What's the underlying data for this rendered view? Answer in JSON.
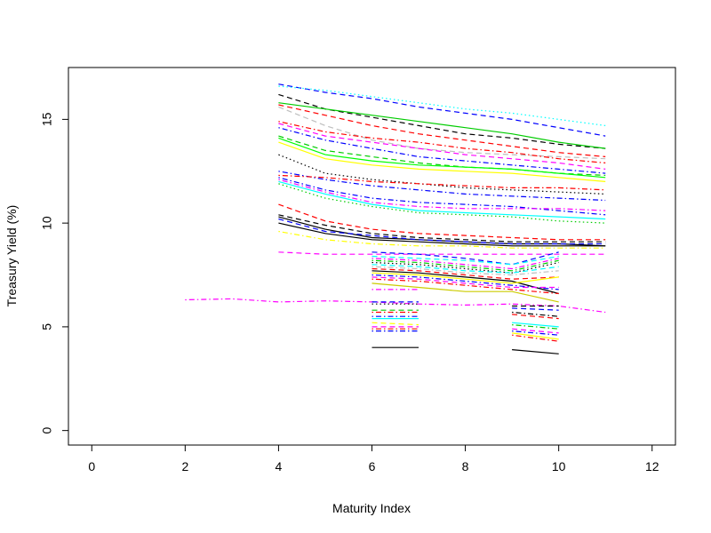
{
  "chart_data": {
    "type": "line",
    "title": "",
    "xlabel": "Maturity Index",
    "ylabel": "Treasury Yield (%)",
    "xlim": [
      -0.5,
      12.5
    ],
    "ylim": [
      -0.7,
      17.5
    ],
    "xticks": [
      0,
      2,
      4,
      6,
      8,
      10,
      12
    ],
    "yticks": [
      0,
      5,
      10,
      15
    ],
    "grid": false,
    "legend": "none",
    "series": [
      {
        "color": "#0000ff",
        "dash": "dashed",
        "x": [
          4,
          5,
          6,
          7,
          8,
          9,
          10,
          11
        ],
        "y": [
          16.7,
          16.3,
          16.0,
          15.6,
          15.3,
          15.0,
          14.6,
          14.2
        ]
      },
      {
        "color": "#00ffff",
        "dash": "dotted",
        "x": [
          4,
          5,
          6,
          7,
          8,
          9,
          10,
          11
        ],
        "y": [
          16.6,
          16.4,
          16.1,
          15.8,
          15.5,
          15.3,
          15.0,
          14.7
        ]
      },
      {
        "color": "#000000",
        "dash": "dashed",
        "x": [
          4,
          5,
          6,
          7,
          8,
          9,
          10,
          11
        ],
        "y": [
          16.2,
          15.5,
          15.1,
          14.7,
          14.3,
          14.1,
          13.8,
          13.6
        ]
      },
      {
        "color": "#00cc00",
        "dash": "solid",
        "x": [
          4,
          5,
          6,
          7,
          8,
          9,
          10,
          11
        ],
        "y": [
          15.8,
          15.5,
          15.2,
          14.9,
          14.6,
          14.3,
          13.9,
          13.6
        ]
      },
      {
        "color": "#ff0000",
        "dash": "dashed",
        "x": [
          4,
          5,
          6,
          7,
          8,
          9,
          10,
          11
        ],
        "y": [
          15.7,
          15.2,
          14.7,
          14.3,
          14.0,
          13.7,
          13.4,
          13.2
        ]
      },
      {
        "color": "#bebebe",
        "dash": "dashed",
        "x": [
          4,
          5,
          6,
          7,
          8,
          9,
          10,
          11
        ],
        "y": [
          15.6,
          14.7,
          14.0,
          13.6,
          13.4,
          13.3,
          13.2,
          13.1
        ]
      },
      {
        "color": "#ff0000",
        "dash": "dashdot",
        "x": [
          4,
          5,
          6,
          7,
          8,
          9,
          10,
          11
        ],
        "y": [
          14.9,
          14.4,
          14.1,
          13.9,
          13.6,
          13.4,
          13.1,
          12.9
        ]
      },
      {
        "color": "#ff00ff",
        "dash": "dashed",
        "x": [
          4,
          5,
          6,
          7,
          8,
          9,
          10,
          11
        ],
        "y": [
          14.8,
          14.2,
          13.9,
          13.6,
          13.3,
          13.1,
          12.9,
          12.6
        ]
      },
      {
        "color": "#0000ff",
        "dash": "dashdot",
        "x": [
          4,
          5,
          6,
          7,
          8,
          9,
          10,
          11
        ],
        "y": [
          14.6,
          14.0,
          13.6,
          13.2,
          13.0,
          12.8,
          12.6,
          12.4
        ]
      },
      {
        "color": "#00cc00",
        "dash": "dashed",
        "x": [
          4,
          5,
          6,
          7,
          8,
          9,
          10,
          11
        ],
        "y": [
          14.2,
          13.5,
          13.2,
          12.9,
          12.7,
          12.6,
          12.4,
          12.3
        ]
      },
      {
        "color": "#00ff00",
        "dash": "solid",
        "x": [
          4,
          5,
          6,
          7,
          8,
          9,
          10,
          11
        ],
        "y": [
          14.1,
          13.3,
          13.0,
          12.8,
          12.7,
          12.6,
          12.4,
          12.2
        ]
      },
      {
        "color": "#ffff00",
        "dash": "solid",
        "x": [
          4,
          5,
          6,
          7,
          8,
          9,
          10,
          11
        ],
        "y": [
          13.9,
          13.1,
          12.8,
          12.6,
          12.5,
          12.4,
          12.2,
          12.0
        ]
      },
      {
        "color": "#000000",
        "dash": "dotted",
        "x": [
          4,
          5,
          6,
          7,
          8,
          9,
          10,
          11
        ],
        "y": [
          13.3,
          12.4,
          12.1,
          11.9,
          11.7,
          11.6,
          11.5,
          11.4
        ]
      },
      {
        "color": "#0000ff",
        "dash": "dashdot",
        "x": [
          4,
          5,
          6,
          7,
          8,
          9,
          10,
          11
        ],
        "y": [
          12.5,
          12.1,
          11.8,
          11.6,
          11.4,
          11.3,
          11.2,
          11.1
        ]
      },
      {
        "color": "#ff0000",
        "dash": "dashdot",
        "x": [
          4,
          5,
          6,
          7,
          8,
          9,
          10,
          11
        ],
        "y": [
          12.3,
          12.2,
          12.0,
          11.9,
          11.8,
          11.7,
          11.7,
          11.6
        ]
      },
      {
        "color": "#00ffff",
        "dash": "solid",
        "x": [
          4,
          5,
          6,
          7,
          8,
          9,
          10,
          11
        ],
        "y": [
          12.0,
          11.4,
          10.9,
          10.6,
          10.5,
          10.4,
          10.3,
          10.2
        ]
      },
      {
        "color": "#0000ff",
        "dash": "dashdot",
        "x": [
          4,
          5,
          6,
          7,
          8,
          9,
          10,
          11
        ],
        "y": [
          12.2,
          11.6,
          11.2,
          11.0,
          10.9,
          10.8,
          10.6,
          10.4
        ]
      },
      {
        "color": "#ff00ff",
        "dash": "dashdot",
        "x": [
          4,
          5,
          6,
          7,
          8,
          9,
          10,
          11
        ],
        "y": [
          12.1,
          11.5,
          11.0,
          10.8,
          10.7,
          10.7,
          10.7,
          10.6
        ]
      },
      {
        "color": "#00cc00",
        "dash": "dotted",
        "x": [
          4,
          5,
          6,
          7,
          8,
          9,
          10,
          11
        ],
        "y": [
          11.9,
          11.2,
          10.8,
          10.5,
          10.4,
          10.3,
          10.1,
          10.0
        ]
      },
      {
        "color": "#ff0000",
        "dash": "dashed",
        "x": [
          4,
          5,
          6,
          7,
          8,
          9,
          10,
          11
        ],
        "y": [
          10.9,
          10.1,
          9.7,
          9.5,
          9.4,
          9.3,
          9.2,
          9.2
        ]
      },
      {
        "color": "#000000",
        "dash": "dashed",
        "x": [
          4,
          5,
          6,
          7,
          8,
          9,
          10,
          11
        ],
        "y": [
          10.4,
          9.9,
          9.5,
          9.3,
          9.2,
          9.1,
          9.1,
          9.1
        ]
      },
      {
        "color": "#000000",
        "dash": "solid",
        "x": [
          4,
          5,
          6,
          7,
          8,
          9,
          10,
          11
        ],
        "y": [
          10.3,
          9.7,
          9.3,
          9.2,
          9.1,
          9.0,
          9.0,
          8.9
        ]
      },
      {
        "color": "#0000ff",
        "dash": "dashed",
        "x": [
          4,
          5,
          6,
          7,
          8,
          9,
          10,
          11
        ],
        "y": [
          10.2,
          9.6,
          9.4,
          9.2,
          9.1,
          9.0,
          9.0,
          9.0
        ]
      },
      {
        "color": "#000000",
        "dash": "solid",
        "x": [
          4,
          5,
          6,
          7,
          8,
          9,
          10,
          11
        ],
        "y": [
          10.0,
          9.5,
          9.2,
          9.1,
          9.0,
          8.9,
          8.9,
          8.9
        ]
      },
      {
        "color": "#ffff00",
        "dash": "dashdot",
        "x": [
          4,
          5,
          6,
          7,
          8,
          9,
          10,
          11
        ],
        "y": [
          9.6,
          9.2,
          9.0,
          8.9,
          8.9,
          8.8,
          8.8,
          8.8
        ]
      },
      {
        "color": "#ff00ff",
        "dash": "dashed",
        "x": [
          4,
          5,
          6,
          7,
          8,
          9,
          10,
          11
        ],
        "y": [
          8.6,
          8.5,
          8.5,
          8.5,
          8.5,
          8.5,
          8.5,
          8.5
        ]
      },
      {
        "color": "#ff00ff",
        "dash": "dashdot",
        "x": [
          2,
          3,
          4,
          5,
          6,
          7,
          8,
          9,
          10,
          11
        ],
        "y": [
          6.3,
          6.35,
          6.2,
          6.25,
          6.2,
          6.1,
          6.05,
          6.1,
          6.0,
          5.7
        ]
      },
      {
        "color": "#0000ff",
        "dash": "dashed",
        "x": [
          6,
          7,
          8,
          9,
          10
        ],
        "y": [
          8.6,
          8.5,
          8.3,
          8.0,
          8.6
        ]
      },
      {
        "color": "#00ffff",
        "dash": "dashed",
        "x": [
          6,
          7,
          8,
          9,
          10
        ],
        "y": [
          8.4,
          8.3,
          8.2,
          8.0,
          8.4
        ]
      },
      {
        "color": "#ff00ff",
        "dash": "dashdot",
        "x": [
          6,
          7,
          8,
          9,
          10
        ],
        "y": [
          8.3,
          8.2,
          8.0,
          7.8,
          8.3
        ]
      },
      {
        "color": "#00cc00",
        "dash": "dashdot",
        "x": [
          6,
          7,
          8,
          9,
          10
        ],
        "y": [
          8.2,
          8.1,
          7.9,
          7.7,
          8.2
        ]
      },
      {
        "color": "#000000",
        "dash": "dotted",
        "x": [
          6,
          7,
          8,
          9,
          10
        ],
        "y": [
          8.1,
          8.0,
          7.8,
          7.6,
          8.1
        ]
      },
      {
        "color": "#00ffff",
        "dash": "dashed",
        "x": [
          6,
          7,
          8,
          9,
          10
        ],
        "y": [
          8.0,
          7.9,
          7.7,
          7.6,
          7.9
        ]
      },
      {
        "color": "#bebebe",
        "dash": "dashdot",
        "x": [
          6,
          7,
          8,
          9,
          10
        ],
        "y": [
          7.9,
          7.8,
          7.6,
          7.5,
          7.7
        ]
      },
      {
        "color": "#ff0000",
        "dash": "dashed",
        "x": [
          6,
          7,
          8,
          9,
          10
        ],
        "y": [
          7.8,
          7.7,
          7.5,
          7.3,
          7.4
        ]
      },
      {
        "color": "#000000",
        "dash": "solid",
        "x": [
          6,
          7,
          8,
          9,
          10
        ],
        "y": [
          7.7,
          7.6,
          7.4,
          7.2,
          6.6
        ]
      },
      {
        "color": "#ffff00",
        "dash": "solid",
        "x": [
          6,
          7,
          8,
          9,
          10
        ],
        "y": [
          7.6,
          7.5,
          7.3,
          7.1,
          7.4
        ]
      },
      {
        "color": "#0000ff",
        "dash": "dashdot",
        "x": [
          6,
          7,
          8,
          9,
          10
        ],
        "y": [
          7.5,
          7.4,
          7.2,
          7.0,
          6.8
        ]
      },
      {
        "color": "#ff00ff",
        "dash": "dashed",
        "x": [
          6,
          7,
          8,
          9,
          10
        ],
        "y": [
          7.4,
          7.3,
          7.1,
          6.9,
          6.9
        ]
      },
      {
        "color": "#ff0000",
        "dash": "dashdot",
        "x": [
          6,
          7,
          8,
          9,
          10
        ],
        "y": [
          7.3,
          7.2,
          7.0,
          6.8,
          6.6
        ]
      },
      {
        "color": "#cccc00",
        "dash": "solid",
        "x": [
          6,
          7,
          8,
          9,
          10
        ],
        "y": [
          7.1,
          6.9,
          6.7,
          6.7,
          6.2
        ]
      },
      {
        "color": "#ff00ff",
        "dash": "dashdot",
        "x": [
          6,
          7
        ],
        "y": [
          6.8,
          6.8
        ]
      },
      {
        "color": "#0000ff",
        "dash": "dashed",
        "x": [
          6,
          7
        ],
        "y": [
          6.2,
          6.2
        ]
      },
      {
        "color": "#000000",
        "dash": "dotted",
        "x": [
          6,
          7
        ],
        "y": [
          6.1,
          6.1
        ]
      },
      {
        "color": "#00cc00",
        "dash": "dashed",
        "x": [
          6,
          7
        ],
        "y": [
          5.8,
          5.8
        ]
      },
      {
        "color": "#ff0000",
        "dash": "dashdot",
        "x": [
          6,
          7
        ],
        "y": [
          5.7,
          5.7
        ]
      },
      {
        "color": "#0000ff",
        "dash": "dashdot",
        "x": [
          6,
          7
        ],
        "y": [
          5.5,
          5.5
        ]
      },
      {
        "color": "#00ffff",
        "dash": "solid",
        "x": [
          6,
          7
        ],
        "y": [
          5.4,
          5.4
        ]
      },
      {
        "color": "#ffff00",
        "dash": "dashed",
        "x": [
          6,
          7
        ],
        "y": [
          5.2,
          5.1
        ]
      },
      {
        "color": "#ff00ff",
        "dash": "dashed",
        "x": [
          6,
          7
        ],
        "y": [
          5.0,
          5.0
        ]
      },
      {
        "color": "#ff0000",
        "dash": "dashdot",
        "x": [
          6,
          7
        ],
        "y": [
          4.9,
          4.9
        ]
      },
      {
        "color": "#0000ff",
        "dash": "dashdot",
        "x": [
          6,
          7
        ],
        "y": [
          4.8,
          4.8
        ]
      },
      {
        "color": "#000000",
        "dash": "solid",
        "x": [
          6,
          7
        ],
        "y": [
          4.0,
          4.0
        ]
      },
      {
        "color": "#000000",
        "dash": "dashed",
        "x": [
          9,
          10
        ],
        "y": [
          6.0,
          6.0
        ]
      },
      {
        "color": "#0000ff",
        "dash": "dashed",
        "x": [
          9,
          10
        ],
        "y": [
          5.9,
          5.8
        ]
      },
      {
        "color": "#000000",
        "dash": "dashdot",
        "x": [
          9,
          10
        ],
        "y": [
          5.7,
          5.5
        ]
      },
      {
        "color": "#ff0000",
        "dash": "dashed",
        "x": [
          9,
          10
        ],
        "y": [
          5.6,
          5.4
        ]
      },
      {
        "color": "#00ffff",
        "dash": "solid",
        "x": [
          9,
          10
        ],
        "y": [
          5.2,
          5.0
        ]
      },
      {
        "color": "#00cc00",
        "dash": "dashdot",
        "x": [
          9,
          10
        ],
        "y": [
          5.1,
          4.9
        ]
      },
      {
        "color": "#ff00ff",
        "dash": "dashed",
        "x": [
          9,
          10
        ],
        "y": [
          4.9,
          4.7
        ]
      },
      {
        "color": "#0000ff",
        "dash": "dashdot",
        "x": [
          9,
          10
        ],
        "y": [
          4.8,
          4.6
        ]
      },
      {
        "color": "#ffff00",
        "dash": "solid",
        "x": [
          9,
          10
        ],
        "y": [
          4.7,
          4.4
        ]
      },
      {
        "color": "#ff0000",
        "dash": "dashdot",
        "x": [
          9,
          10
        ],
        "y": [
          4.6,
          4.3
        ]
      },
      {
        "color": "#000000",
        "dash": "solid",
        "x": [
          9,
          10
        ],
        "y": [
          3.9,
          3.7
        ]
      }
    ]
  }
}
